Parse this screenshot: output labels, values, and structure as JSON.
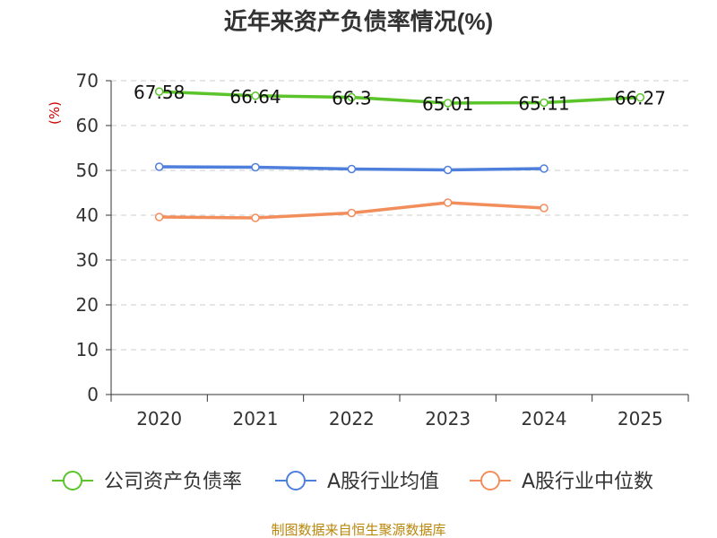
{
  "chart_data": {
    "type": "line",
    "title": "近年来资产负债率情况(%)",
    "ylabel": "(%)",
    "xlabel": "",
    "ylim": [
      0,
      70
    ],
    "yticks": [
      0,
      10,
      20,
      30,
      40,
      50,
      60,
      70
    ],
    "categories": [
      "2020",
      "2021",
      "2022",
      "2023",
      "2024",
      "2025"
    ],
    "grid": true,
    "legend_position": "bottom",
    "series": [
      {
        "name": "公司资产负债率",
        "color": "#5bc42a",
        "values": [
          67.58,
          66.64,
          66.3,
          65.01,
          65.11,
          66.27
        ],
        "labels": [
          "67.58",
          "66.64",
          "66.3",
          "65.01",
          "65.11",
          "66.27"
        ]
      },
      {
        "name": "A股行业均值",
        "color": "#4f7fdc",
        "values": [
          50.8,
          50.7,
          50.3,
          50.1,
          50.4,
          null
        ]
      },
      {
        "name": "A股行业中位数",
        "color": "#f28e5b",
        "values": [
          39.6,
          39.4,
          40.5,
          42.8,
          41.6,
          null
        ]
      }
    ]
  },
  "footer": {
    "source": "制图数据来自恒生聚源数据库"
  }
}
